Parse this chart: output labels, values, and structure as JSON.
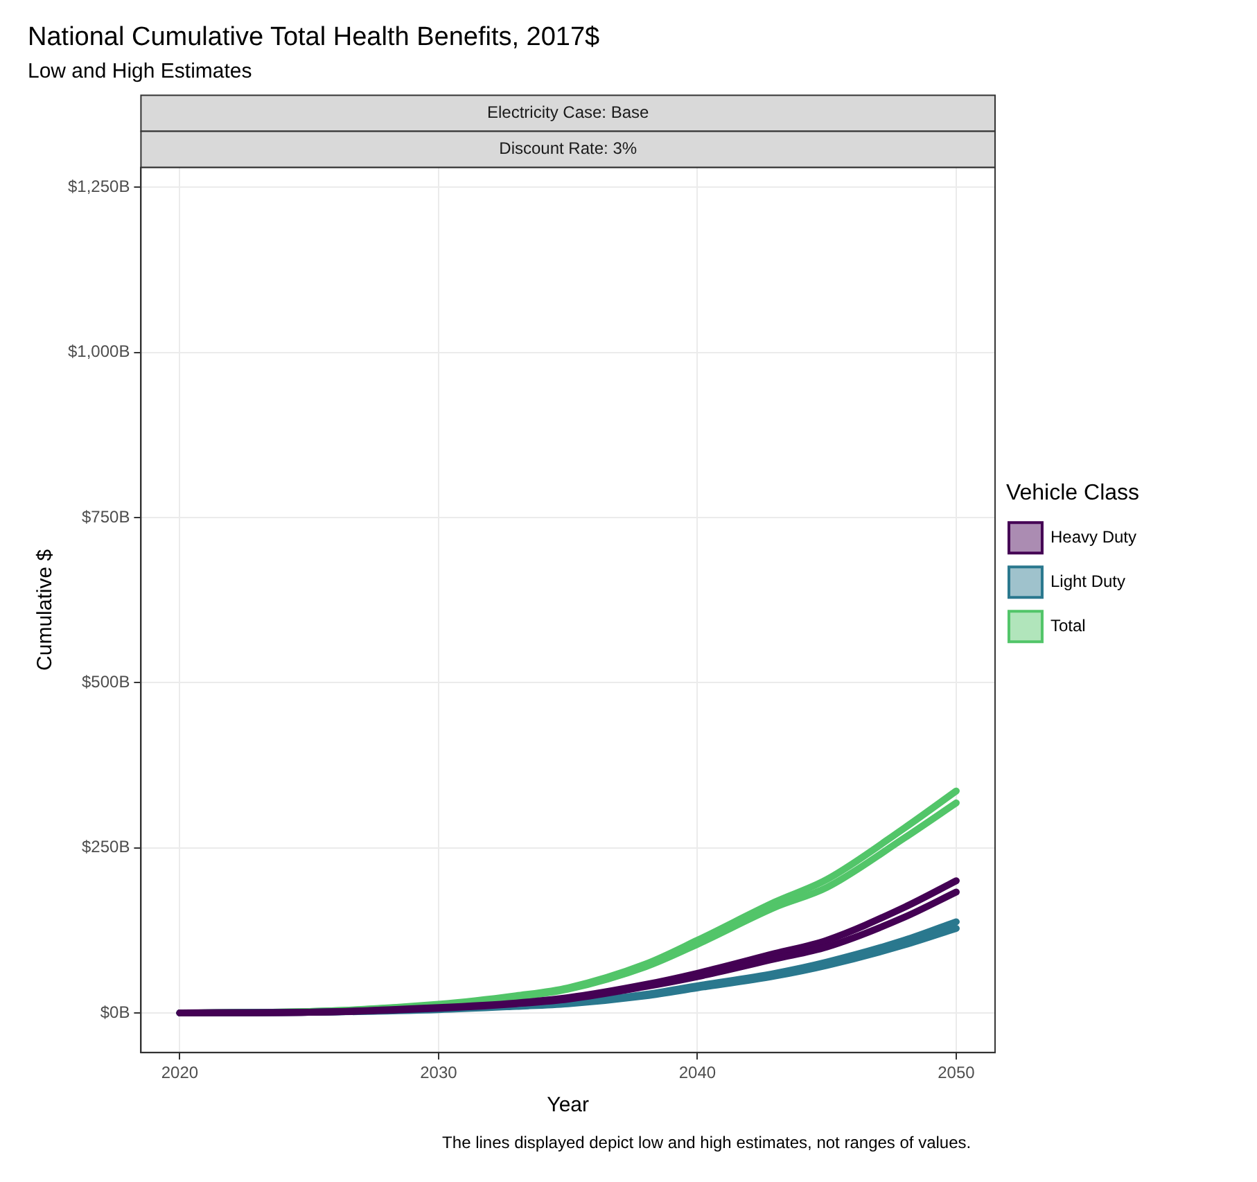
{
  "chart_data": {
    "type": "line",
    "title": "National Cumulative Total Health Benefits, 2017$",
    "subtitle": "Low and High Estimates",
    "xlabel": "Year",
    "ylabel": "Cumulative $",
    "legend_title": "Vehicle Class",
    "annotations": [
      "Electricity Case: Base",
      "Discount Rate: 3%",
      "The lines displayed depict low and high estimates, not ranges of values."
    ],
    "x": [
      2020,
      2025,
      2030,
      2033,
      2035,
      2038,
      2040,
      2043,
      2045,
      2048,
      2050
    ],
    "series": [
      {
        "name": "Heavy Duty",
        "color": "#440154",
        "values": [
          0,
          1,
          7,
          14,
          21,
          40,
          55,
          82,
          100,
          145,
          183
        ]
      },
      {
        "color": "#440154",
        "values": [
          0,
          1,
          8,
          15,
          23,
          43,
          60,
          90,
          110,
          160,
          200
        ]
      },
      {
        "name": "Light Duty",
        "color": "#2a788e",
        "values": [
          0,
          1,
          5,
          10,
          14,
          26,
          38,
          56,
          72,
          103,
          128
        ]
      },
      {
        "color": "#2a788e",
        "values": [
          0,
          1,
          6,
          11,
          15,
          28,
          41,
          60,
          77,
          110,
          138
        ]
      },
      {
        "name": "Total",
        "color": "#52c569",
        "values": [
          0,
          2,
          12,
          24,
          36,
          70,
          104,
          160,
          190,
          265,
          318
        ]
      },
      {
        "color": "#52c569",
        "values": [
          0,
          2,
          13,
          26,
          38,
          74,
          110,
          168,
          202,
          280,
          336
        ]
      }
    ],
    "xlim": [
      2018.5,
      2051.5
    ],
    "xticks": [
      2020,
      2030,
      2040,
      2050
    ],
    "ylim": [
      -60,
      1280
    ],
    "yticks": [
      {
        "value": 0,
        "label": "$0B"
      },
      {
        "value": 250,
        "label": "$250B"
      },
      {
        "value": 500,
        "label": "$500B"
      },
      {
        "value": 750,
        "label": "$750B"
      },
      {
        "value": 1000,
        "label": "$1,000B"
      },
      {
        "value": 1250,
        "label": "$1,250B"
      }
    ],
    "grid": true,
    "legend": "right",
    "marker": "none",
    "line_style": "solid"
  }
}
